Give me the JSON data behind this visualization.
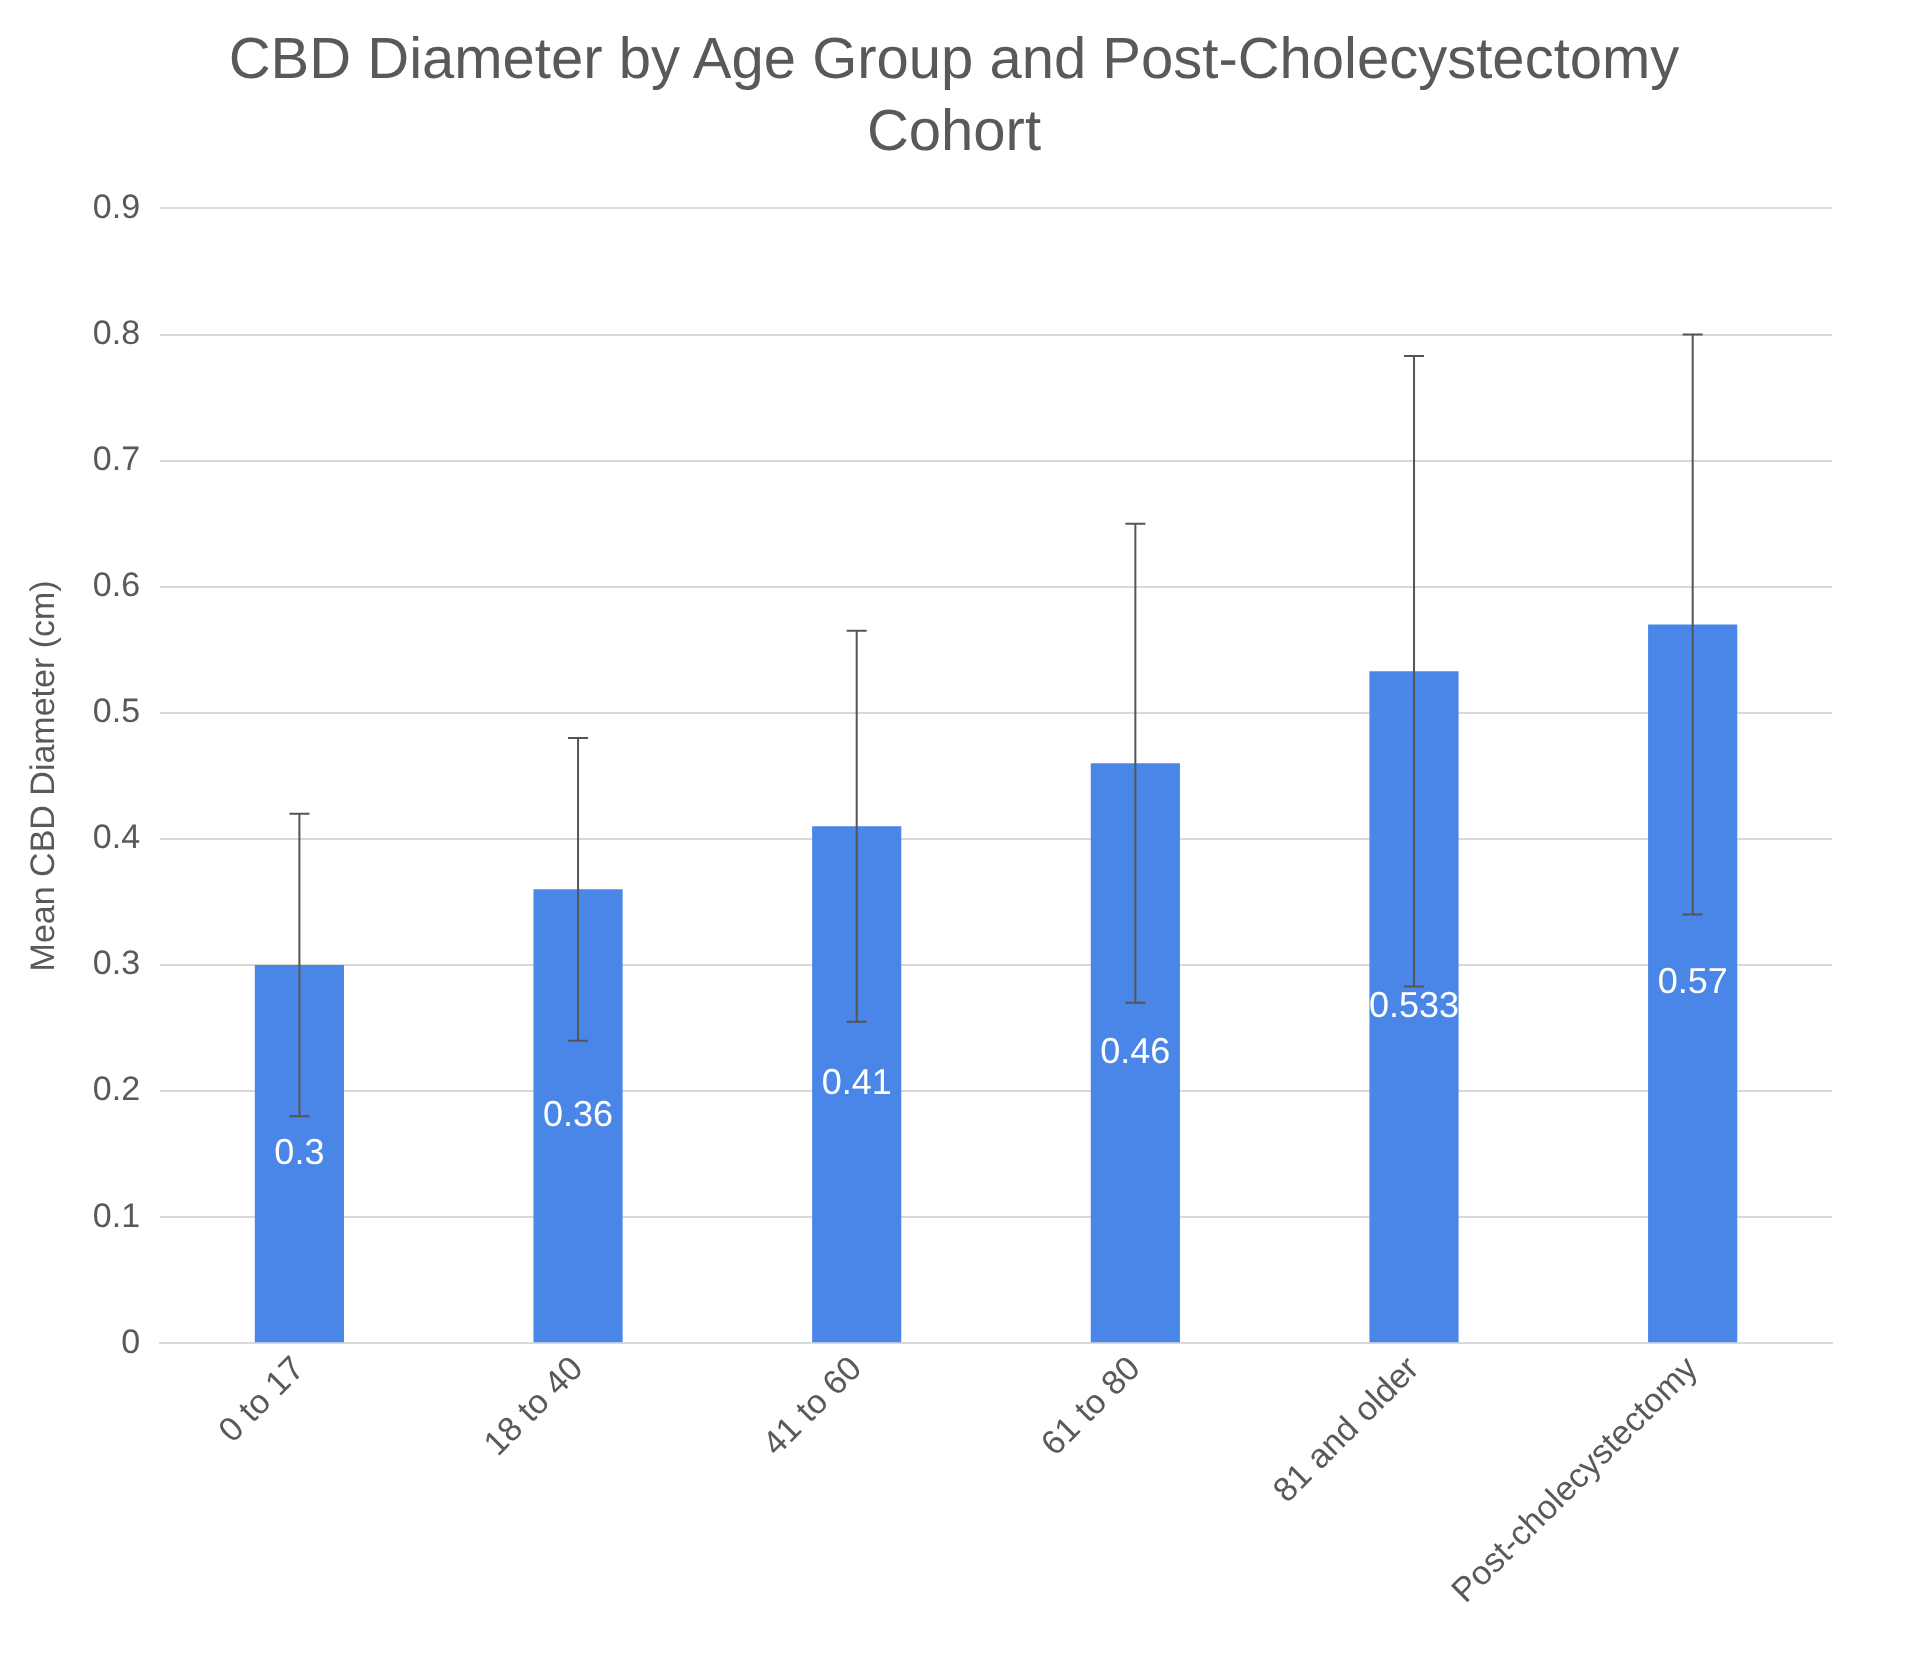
{
  "chart_data": {
    "type": "bar",
    "title": "CBD Diameter by Age Group and Post-Cholecystectomy Cohort",
    "ylabel": "Mean CBD Diameter (cm)",
    "categories": [
      "0 to 17",
      "18 to 40",
      "41 to 60",
      "61 to 80",
      "81 and older",
      "Post-cholecystectomy"
    ],
    "values": [
      0.3,
      0.36,
      0.41,
      0.46,
      0.533,
      0.57
    ],
    "errors": [
      0.12,
      0.12,
      0.155,
      0.19,
      0.25,
      0.23
    ],
    "color": "#4a86e8",
    "ylim": [
      0,
      0.9
    ],
    "yticks": [
      0,
      0.1,
      0.2,
      0.3,
      0.4,
      0.5,
      0.6,
      0.7,
      0.8,
      0.9
    ],
    "grid": "y",
    "data_labels": true
  }
}
